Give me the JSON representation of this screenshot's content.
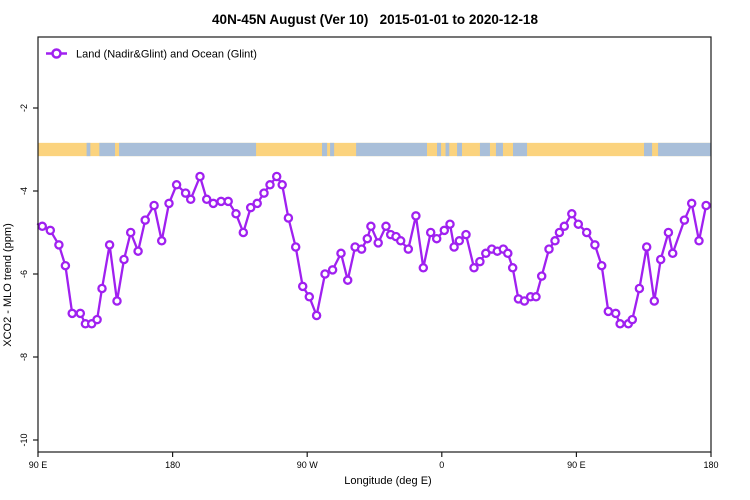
{
  "title": "40N-45N August (Ver 10)   2015-01-01 to 2020-12-18",
  "legend": {
    "label": "Land (Nadir&Glint) and Ocean (Glint)"
  },
  "axes": {
    "x": {
      "label": "Longitude (deg E)",
      "ticks": [
        {
          "pos": 0,
          "label": "90 E"
        },
        {
          "pos": 90,
          "label": "180"
        },
        {
          "pos": 180,
          "label": "90 W"
        },
        {
          "pos": 270,
          "label": "0"
        },
        {
          "pos": 360,
          "label": "90 E"
        },
        {
          "pos": 450,
          "label": "180"
        }
      ],
      "range_deg_east_of_axis_origin": [
        0,
        450
      ]
    },
    "y": {
      "label": "XCO2 - MLO trend (ppm)",
      "ticks": [
        "-2",
        "-4",
        "-6",
        "-8",
        "-10"
      ],
      "range": [
        -10.3,
        -0.3
      ]
    }
  },
  "map_band": {
    "description": "40N-45N latitude land/ocean strip drawn across the plot near y=-3",
    "value_center": -3,
    "value_halfwidth": 0.16,
    "ocean_segments_deg": [
      [
        32.5,
        35
      ],
      [
        41,
        51.5
      ],
      [
        54.2,
        145.8
      ],
      [
        189.9,
        193.3
      ],
      [
        195.3,
        198
      ],
      [
        212.7,
        260.1
      ],
      [
        266.8,
        269.5
      ],
      [
        272.5,
        275
      ],
      [
        280.2,
        283.5
      ],
      [
        295.5,
        302.2
      ],
      [
        306.2,
        310.9
      ],
      [
        317.6,
        327
      ],
      [
        405.2,
        410.6
      ],
      [
        414.6,
        450
      ]
    ]
  },
  "colors": {
    "series": "#a020f0",
    "axis": "#1a1a1a",
    "land": "#fbd37e",
    "ocean": "#a9bfd9",
    "background": "#ffffff"
  },
  "chart_data": {
    "type": "line",
    "title": "40N-45N August (Ver 10) 2015-01-01 to 2020-12-18",
    "xlabel": "Longitude (deg E)",
    "ylabel": "XCO2 - MLO trend (ppm)",
    "x_units": "degrees east of axis origin (axis starts at 90E and spans 450 deg: 90E, 180, 90W, 0, 90E, 180; last 90 deg repeat the first)",
    "ylim": [
      -10.3,
      -0.3
    ],
    "grid": false,
    "legend_position": "top-left",
    "marker": "open-circle",
    "series": [
      {
        "name": "Land (Nadir&Glint) and Ocean (Glint)",
        "color": "#a020f0",
        "lead_in_point": [
          0,
          -4.8
        ],
        "points": [
          [
            2.9,
            -4.85
          ],
          [
            8.2,
            -4.95
          ],
          [
            14,
            -5.3
          ],
          [
            18.3,
            -5.8
          ],
          [
            22.9,
            -6.95
          ],
          [
            28.3,
            -6.95
          ],
          [
            31.7,
            -7.2
          ],
          [
            35.9,
            -7.2
          ],
          [
            39.5,
            -7.1
          ],
          [
            42.8,
            -6.35
          ],
          [
            47.9,
            -5.3
          ],
          [
            52.8,
            -6.65
          ],
          [
            57.5,
            -5.65
          ],
          [
            62,
            -5.0
          ],
          [
            66.9,
            -5.45
          ],
          [
            71.7,
            -4.7
          ],
          [
            77.6,
            -4.35
          ],
          [
            82.7,
            -5.2
          ],
          [
            87.6,
            -4.3
          ],
          [
            92.7,
            -3.85
          ],
          [
            98.7,
            -4.05
          ],
          [
            102.1,
            -4.2
          ],
          [
            108.3,
            -3.65
          ],
          [
            112.8,
            -4.2
          ],
          [
            117.2,
            -4.3
          ],
          [
            122.4,
            -4.25
          ],
          [
            127.2,
            -4.25
          ],
          [
            132.4,
            -4.55
          ],
          [
            137.3,
            -5.0
          ],
          [
            142.2,
            -4.4
          ],
          [
            146.6,
            -4.3
          ],
          [
            151.1,
            -4.05
          ],
          [
            155.1,
            -3.85
          ],
          [
            159.6,
            -3.65
          ],
          [
            163.3,
            -3.85
          ],
          [
            167.4,
            -4.65
          ],
          [
            172.3,
            -5.35
          ],
          [
            177,
            -6.3
          ],
          [
            181.4,
            -6.55
          ],
          [
            186.3,
            -7.0
          ],
          [
            191.9,
            -6.0
          ],
          [
            197,
            -5.9
          ],
          [
            202.6,
            -5.5
          ],
          [
            207.1,
            -6.15
          ],
          [
            212,
            -5.35
          ],
          [
            216.4,
            -5.4
          ],
          [
            220.2,
            -5.15
          ],
          [
            222.6,
            -4.85
          ],
          [
            227.5,
            -5.25
          ],
          [
            232.7,
            -4.85
          ],
          [
            235.8,
            -5.05
          ],
          [
            239.4,
            -5.1
          ],
          [
            242.5,
            -5.2
          ],
          [
            247.6,
            -5.4
          ],
          [
            252.7,
            -4.6
          ],
          [
            257.6,
            -5.85
          ],
          [
            262.6,
            -5.0
          ],
          [
            266.6,
            -5.15
          ],
          [
            271.7,
            -4.95
          ],
          [
            275.5,
            -4.8
          ],
          [
            278.2,
            -5.35
          ],
          [
            281.7,
            -5.2
          ],
          [
            286.2,
            -5.05
          ],
          [
            291.5,
            -5.85
          ],
          [
            295.5,
            -5.7
          ],
          [
            299.4,
            -5.5
          ],
          [
            303.4,
            -5.4
          ],
          [
            307.1,
            -5.45
          ],
          [
            311.1,
            -5.4
          ],
          [
            314.1,
            -5.5
          ],
          [
            317.4,
            -5.85
          ],
          [
            321.2,
            -6.6
          ],
          [
            325.2,
            -6.65
          ],
          [
            329.4,
            -6.55
          ],
          [
            333,
            -6.55
          ],
          [
            336.8,
            -6.05
          ],
          [
            341.7,
            -5.4
          ],
          [
            345.7,
            -5.2
          ],
          [
            348.6,
            -5.0
          ],
          [
            351.9,
            -4.85
          ],
          [
            356.9,
            -4.55
          ],
          [
            361.3,
            -4.8
          ],
          [
            366.9,
            -5.0
          ],
          [
            372.4,
            -5.3
          ],
          [
            376.9,
            -5.8
          ],
          [
            381.3,
            -6.9
          ],
          [
            386.3,
            -6.95
          ],
          [
            389.2,
            -7.2
          ],
          [
            394.7,
            -7.2
          ],
          [
            397.4,
            -7.1
          ],
          [
            402.1,
            -6.35
          ],
          [
            407,
            -5.35
          ],
          [
            412.1,
            -6.65
          ],
          [
            416.4,
            -5.65
          ],
          [
            421.5,
            -5.0
          ],
          [
            424.4,
            -5.5
          ],
          [
            432.2,
            -4.7
          ],
          [
            437.1,
            -4.3
          ],
          [
            442,
            -5.2
          ],
          [
            446.7,
            -4.35
          ]
        ]
      }
    ]
  }
}
